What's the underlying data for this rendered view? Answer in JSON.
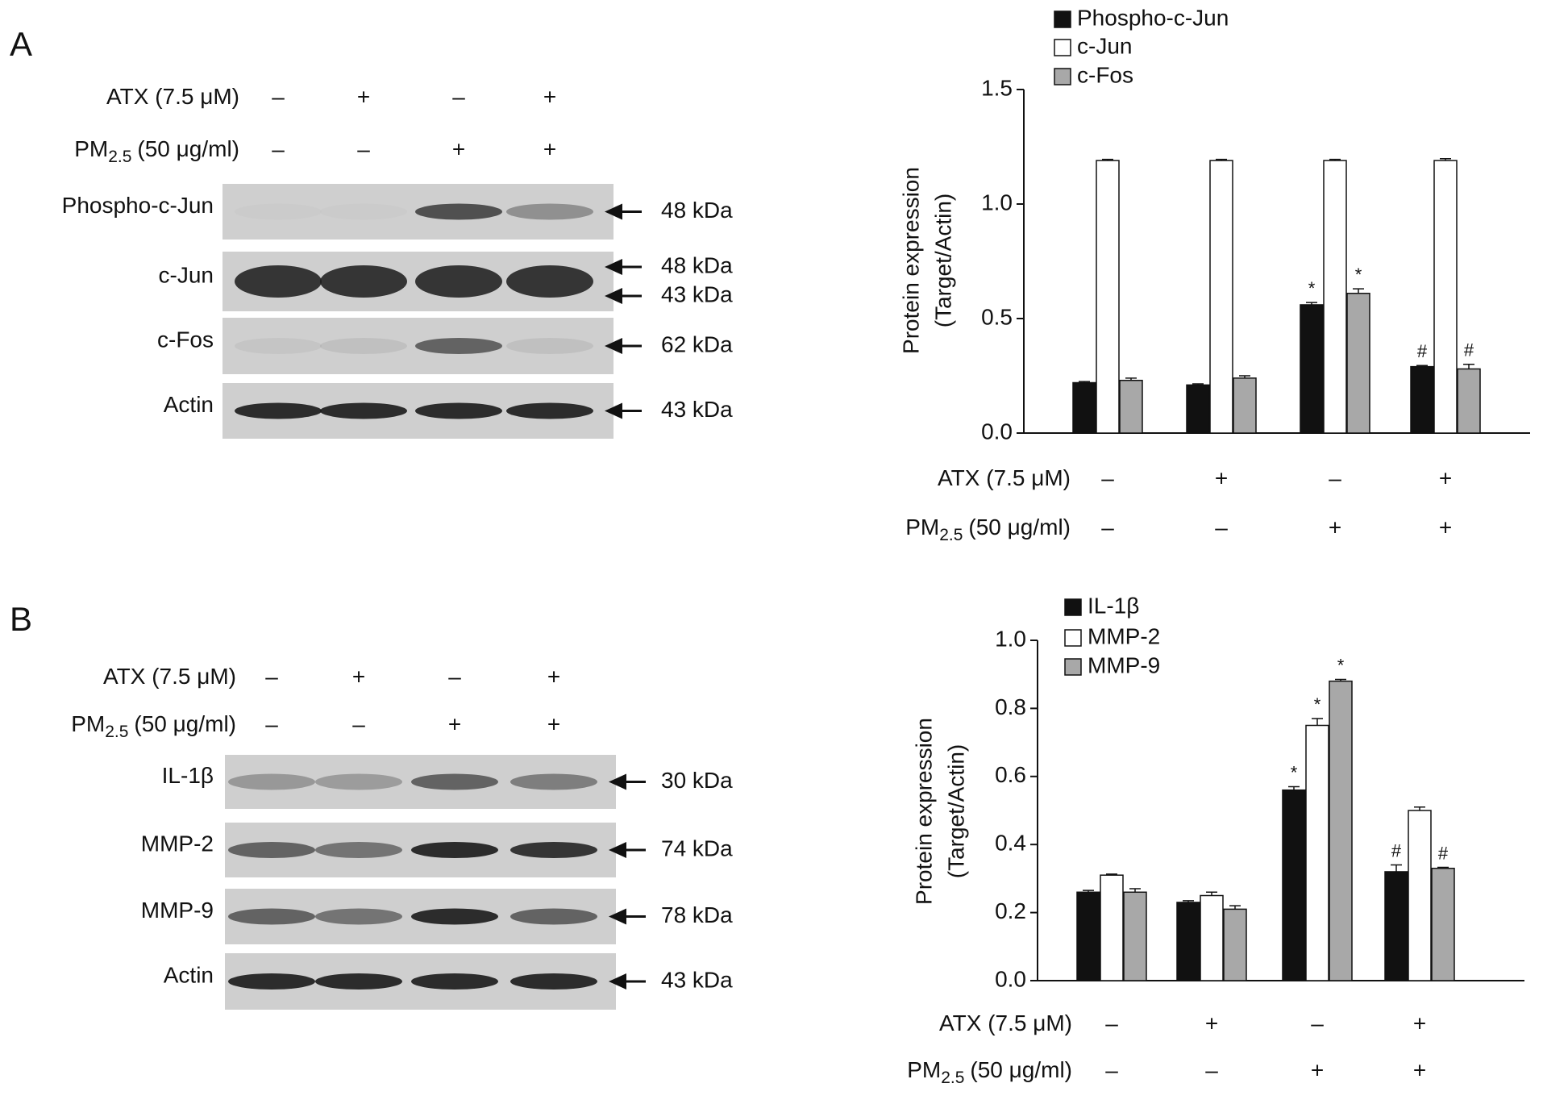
{
  "panels": [
    {
      "label": "A",
      "blot": {
        "treatments": [
          {
            "label": "ATX (7.5 μM)",
            "signs": [
              "–",
              "+",
              "–",
              "+"
            ]
          },
          {
            "label": "PM",
            "sub": "2.5",
            "rest": "(50 μg/ml)",
            "signs": [
              "–",
              "–",
              "+",
              "+"
            ]
          }
        ],
        "rows": [
          {
            "label": "Phospho-c-Jun",
            "sizes": [
              "48 kDa"
            ],
            "bands": [
              0.02,
              0.02,
              0.7,
              0.35
            ]
          },
          {
            "label": "c-Jun",
            "sizes": [
              "48 kDa",
              "43 kDa"
            ],
            "bands": [
              0.85,
              0.85,
              0.85,
              0.85
            ]
          },
          {
            "label": "c-Fos",
            "sizes": [
              "62 kDa"
            ],
            "bands": [
              0.05,
              0.08,
              0.6,
              0.08
            ]
          },
          {
            "label": "Actin",
            "sizes": [
              "43 kDa"
            ],
            "bands": [
              0.9,
              0.9,
              0.9,
              0.9
            ]
          }
        ]
      }
    },
    {
      "label": "B",
      "blot": {
        "treatments": [
          {
            "label": "ATX (7.5 μM)",
            "signs": [
              "–",
              "+",
              "–",
              "+"
            ]
          },
          {
            "label": "PM",
            "sub": "2.5",
            "rest": "(50 μg/ml)",
            "signs": [
              "–",
              "–",
              "+",
              "+"
            ]
          }
        ],
        "rows": [
          {
            "label": "IL-1β",
            "sizes": [
              "30 kDa"
            ],
            "bands": [
              0.3,
              0.28,
              0.6,
              0.45
            ]
          },
          {
            "label": "MMP-2",
            "sizes": [
              "74 kDa"
            ],
            "bands": [
              0.6,
              0.5,
              0.9,
              0.85
            ]
          },
          {
            "label": "MMP-9",
            "sizes": [
              "78 kDa"
            ],
            "bands": [
              0.6,
              0.5,
              0.9,
              0.6
            ]
          },
          {
            "label": "Actin",
            "sizes": [
              "43 kDa"
            ],
            "bands": [
              0.9,
              0.9,
              0.9,
              0.9
            ]
          }
        ]
      }
    }
  ],
  "chart_data": [
    {
      "type": "bar",
      "ylabel": [
        "Protein expression",
        "(Target/Actin)"
      ],
      "treatments": [
        {
          "label": "ATX (7.5 μM)",
          "signs": [
            "–",
            "+",
            "–",
            "+"
          ]
        },
        {
          "label": "PM",
          "sub": "2.5",
          "rest": "(50 μg/ml)",
          "signs": [
            "–",
            "–",
            "+",
            "+"
          ]
        }
      ],
      "ylim": [
        0,
        1.5
      ],
      "yticks": [
        {
          "value": 0,
          "label": "0.0"
        },
        {
          "value": 0.5,
          "label": "0.5"
        },
        {
          "value": 1,
          "label": "1.0"
        },
        {
          "value": 1.5,
          "label": "1.5"
        }
      ],
      "series": [
        {
          "name": "Phospho-c-Jun",
          "color": "#111111",
          "values": [
            0.22,
            0.21,
            0.56,
            0.29
          ],
          "errors": [
            0.005,
            0.005,
            0.01,
            0.005
          ],
          "marks": [
            null,
            null,
            "*",
            "#"
          ]
        },
        {
          "name": "c-Jun",
          "color": "#ffffff",
          "values": [
            1.19,
            1.19,
            1.19,
            1.19
          ],
          "errors": [
            0.005,
            0.005,
            0.005,
            0.008
          ],
          "marks": [
            null,
            null,
            null,
            null
          ]
        },
        {
          "name": "c-Fos",
          "color": "#a8a8a8",
          "values": [
            0.23,
            0.24,
            0.61,
            0.28
          ],
          "errors": [
            0.01,
            0.01,
            0.02,
            0.02
          ],
          "marks": [
            null,
            null,
            "*",
            "#"
          ]
        }
      ]
    },
    {
      "type": "bar",
      "ylabel": [
        "Protein expression",
        "(Target/Actin)"
      ],
      "treatments": [
        {
          "label": "ATX (7.5 μM)",
          "signs": [
            "–",
            "+",
            "–",
            "+"
          ]
        },
        {
          "label": "PM",
          "sub": "2.5",
          "rest": "(50 μg/ml)",
          "signs": [
            "–",
            "–",
            "+",
            "+"
          ]
        }
      ],
      "ylim": [
        0,
        1.0
      ],
      "yticks": [
        {
          "value": 0,
          "label": "0.0"
        },
        {
          "value": 0.2,
          "label": "0.2"
        },
        {
          "value": 0.4,
          "label": "0.4"
        },
        {
          "value": 0.6,
          "label": "0.6"
        },
        {
          "value": 0.8,
          "label": "0.8"
        },
        {
          "value": 1,
          "label": "1.0"
        }
      ],
      "series": [
        {
          "name": "IL-1β",
          "color": "#111111",
          "values": [
            0.26,
            0.23,
            0.56,
            0.32
          ],
          "errors": [
            0.005,
            0.005,
            0.01,
            0.02
          ],
          "marks": [
            null,
            null,
            "*",
            "#"
          ]
        },
        {
          "name": "MMP-2",
          "color": "#ffffff",
          "values": [
            0.31,
            0.25,
            0.75,
            0.5
          ],
          "errors": [
            0.003,
            0.01,
            0.02,
            0.01
          ],
          "marks": [
            null,
            null,
            "*",
            null
          ]
        },
        {
          "name": "MMP-9",
          "color": "#a8a8a8",
          "values": [
            0.26,
            0.21,
            0.88,
            0.33
          ],
          "errors": [
            0.01,
            0.01,
            0.005,
            0.003
          ],
          "marks": [
            null,
            null,
            "*",
            "#"
          ]
        }
      ]
    }
  ]
}
